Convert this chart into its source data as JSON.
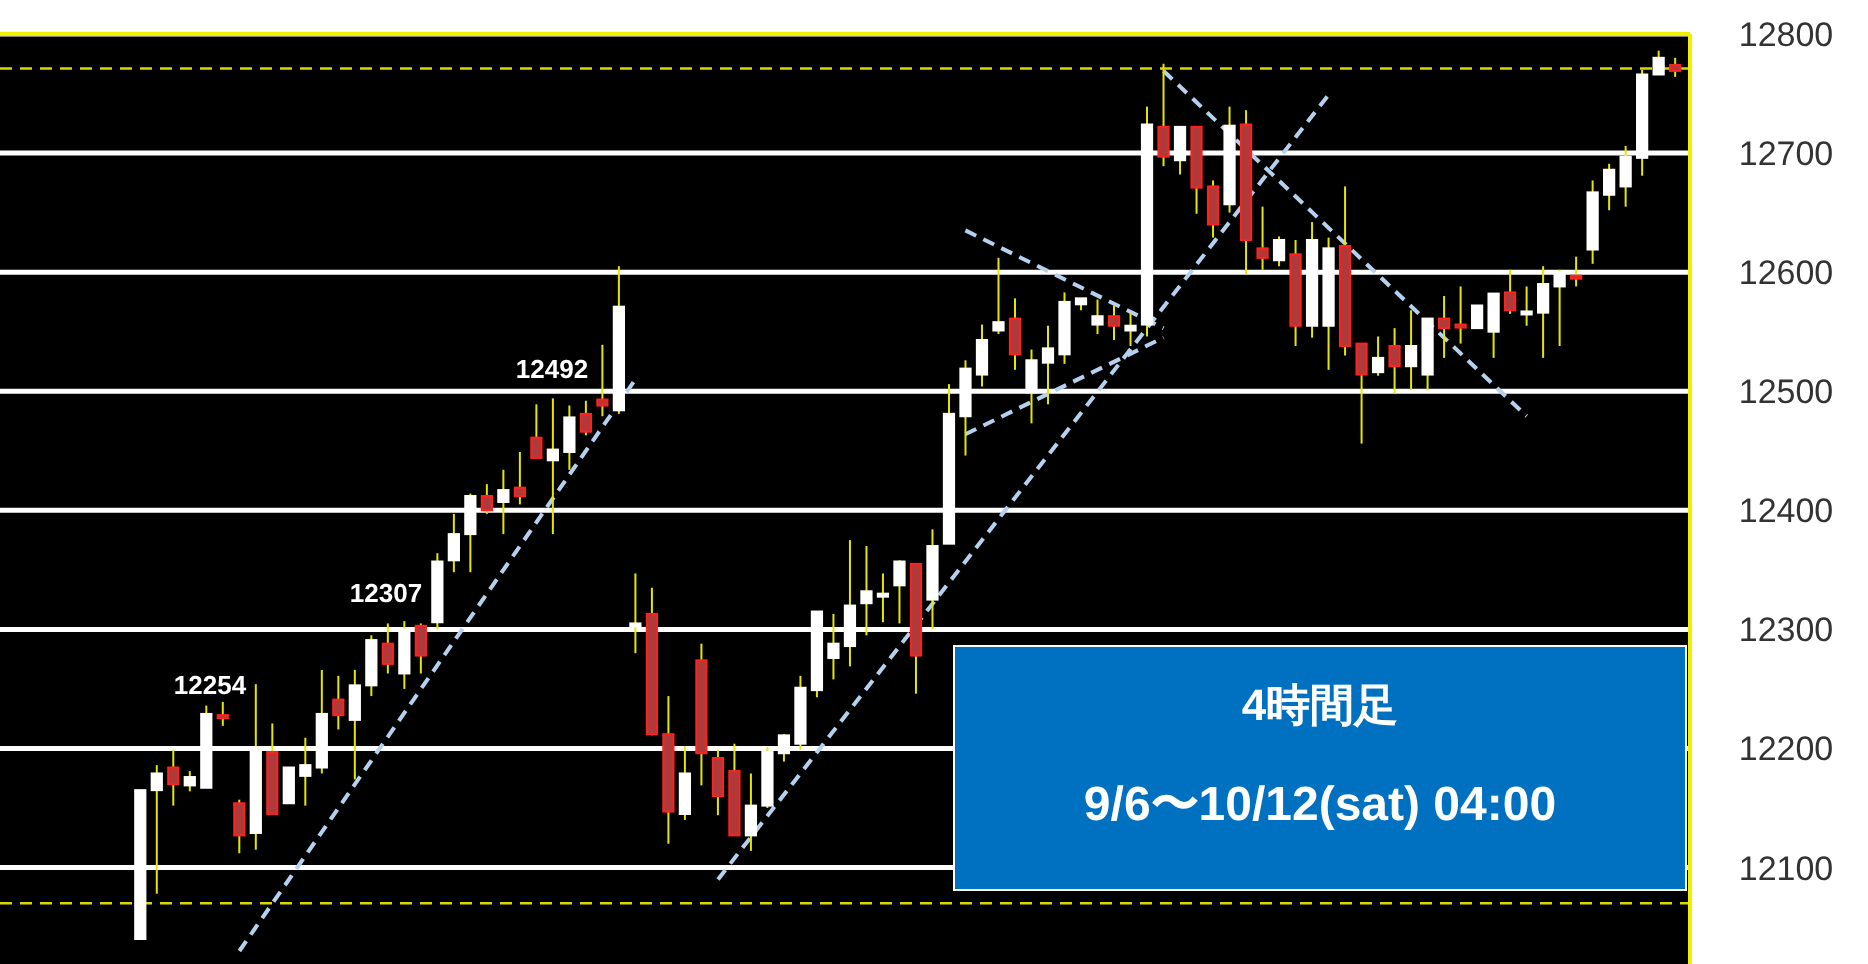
{
  "chart_data": {
    "type": "candlestick",
    "categories": [
      null,
      null,
      null,
      null,
      null,
      null,
      null,
      null,
      null,
      null,
      null,
      null,
      null,
      null,
      null,
      null,
      null,
      null,
      null,
      null,
      null,
      null,
      null,
      null,
      null,
      null,
      null,
      null,
      null,
      null,
      null,
      null,
      null,
      null,
      null,
      null,
      null,
      null,
      null,
      null,
      null,
      null,
      null,
      null,
      null,
      null,
      null,
      null,
      null,
      null,
      null,
      null,
      null,
      null,
      null,
      null,
      null,
      null,
      null,
      null,
      null,
      null,
      null,
      null,
      null,
      null,
      null,
      null,
      null,
      null,
      null,
      null,
      null,
      null,
      null,
      null,
      null,
      null,
      null,
      null,
      null,
      null,
      null,
      null,
      null,
      null,
      null,
      null,
      null,
      null,
      null,
      null,
      null,
      null
    ],
    "ohlc": [
      [
        12040,
        12165,
        12040,
        12165
      ],
      [
        12165,
        12186,
        12078,
        12179
      ],
      [
        12184,
        12199,
        12152,
        12170
      ],
      [
        12169,
        12181,
        12164,
        12176
      ],
      [
        12167,
        12236,
        12167,
        12229
      ],
      [
        12228,
        12239,
        12219,
        12226
      ],
      [
        12154,
        12157,
        12112,
        12127
      ],
      [
        12129,
        12254,
        12115,
        12201
      ],
      [
        12197,
        12221,
        12145,
        12145
      ],
      [
        12154,
        12184,
        12154,
        12184
      ],
      [
        12177,
        12209,
        12152,
        12186
      ],
      [
        12184,
        12266,
        12179,
        12229
      ],
      [
        12241,
        12261,
        12216,
        12228
      ],
      [
        12224,
        12266,
        12174,
        12253
      ],
      [
        12253,
        12295,
        12244,
        12291
      ],
      [
        12288,
        12305,
        12263,
        12271
      ],
      [
        12263,
        12307,
        12250,
        12300
      ],
      [
        12303,
        12305,
        12263,
        12278
      ],
      [
        12306,
        12364,
        12300,
        12357
      ],
      [
        12358,
        12397,
        12348,
        12380
      ],
      [
        12380,
        12414,
        12348,
        12412
      ],
      [
        12412,
        12422,
        12397,
        12400
      ],
      [
        12407,
        12434,
        12380,
        12417
      ],
      [
        12419,
        12449,
        12405,
        12412
      ],
      [
        12461,
        12489,
        12444,
        12444
      ],
      [
        12442,
        12494,
        12380,
        12451
      ],
      [
        12449,
        12488,
        12434,
        12478
      ],
      [
        12481,
        12492,
        12463,
        12466
      ],
      [
        12493,
        12539,
        12479,
        12488
      ],
      [
        12484,
        12605,
        12481,
        12571
      ],
      [
        12303,
        12347,
        12280,
        12305
      ],
      [
        12313,
        12335,
        12211,
        12212
      ],
      [
        12212,
        12244,
        12120,
        12147
      ],
      [
        12145,
        12202,
        12140,
        12179
      ],
      [
        12274,
        12288,
        12169,
        12196
      ],
      [
        12192,
        12199,
        12144,
        12160
      ],
      [
        12181,
        12204,
        12127,
        12127
      ],
      [
        12127,
        12179,
        12114,
        12152
      ],
      [
        12152,
        12201,
        12150,
        12197
      ],
      [
        12196,
        12212,
        12189,
        12211
      ],
      [
        12204,
        12261,
        12199,
        12251
      ],
      [
        12249,
        12315,
        12243,
        12315
      ],
      [
        12276,
        12313,
        12258,
        12288
      ],
      [
        12286,
        12375,
        12269,
        12320
      ],
      [
        12322,
        12370,
        12295,
        12332
      ],
      [
        12328,
        12347,
        12306,
        12330
      ],
      [
        12337,
        12358,
        12305,
        12357
      ],
      [
        12355,
        12355,
        12246,
        12278
      ],
      [
        12325,
        12384,
        12300,
        12370
      ],
      [
        12372,
        12506,
        12372,
        12481
      ],
      [
        12479,
        12526,
        12446,
        12519
      ],
      [
        12514,
        12556,
        12504,
        12543
      ],
      [
        12551,
        12612,
        12548,
        12558
      ],
      [
        12561,
        12578,
        12518,
        12531
      ],
      [
        12499,
        12535,
        12473,
        12526
      ],
      [
        12524,
        12555,
        12489,
        12536
      ],
      [
        12531,
        12583,
        12523,
        12575
      ],
      [
        12573,
        12578,
        12568,
        12578
      ],
      [
        12556,
        12577,
        12548,
        12563
      ],
      [
        12563,
        12572,
        12543,
        12555
      ],
      [
        12551,
        12566,
        12538,
        12555
      ],
      [
        12556,
        12739,
        12546,
        12724
      ],
      [
        12722,
        12775,
        12689,
        12697
      ],
      [
        12694,
        12722,
        12682,
        12722
      ],
      [
        12722,
        12722,
        12649,
        12671
      ],
      [
        12672,
        12677,
        12629,
        12640
      ],
      [
        12657,
        12739,
        12650,
        12723
      ],
      [
        12724,
        12736,
        12598,
        12627
      ],
      [
        12620,
        12655,
        12602,
        12612
      ],
      [
        12610,
        12630,
        12605,
        12627
      ],
      [
        12615,
        12627,
        12538,
        12555
      ],
      [
        12555,
        12642,
        12545,
        12627
      ],
      [
        12555,
        12629,
        12518,
        12620
      ],
      [
        12622,
        12672,
        12530,
        12538
      ],
      [
        12540,
        12540,
        12456,
        12514
      ],
      [
        12516,
        12546,
        12513,
        12528
      ],
      [
        12538,
        12553,
        12498,
        12521
      ],
      [
        12521,
        12568,
        12501,
        12538
      ],
      [
        12514,
        12561,
        12501,
        12561
      ],
      [
        12561,
        12580,
        12528,
        12553
      ],
      [
        12556,
        12588,
        12540,
        12554
      ],
      [
        12553,
        12572,
        12553,
        12572
      ],
      [
        12550,
        12582,
        12528,
        12582
      ],
      [
        12583,
        12602,
        12565,
        12568
      ],
      [
        12565,
        12588,
        12555,
        12567
      ],
      [
        12566,
        12605,
        12528,
        12590
      ],
      [
        12588,
        12602,
        12538,
        12600
      ],
      [
        12597,
        12613,
        12588,
        12595
      ],
      [
        12619,
        12677,
        12607,
        12667
      ],
      [
        12665,
        12691,
        12652,
        12686
      ],
      [
        12672,
        12706,
        12655,
        12697
      ],
      [
        12696,
        12770,
        12681,
        12766
      ],
      [
        12766,
        12786,
        12766,
        12780
      ],
      [
        12774,
        12780,
        12764,
        12769
      ]
    ],
    "colors": [
      "#ffffff",
      "#ffffff",
      "#b03a3a",
      "#ffffff",
      "#ffffff",
      "#b03a3a",
      "#b03a3a",
      "#ffffff",
      "#b03a3a",
      "#ffffff",
      "#ffffff",
      "#ffffff",
      "#b03a3a",
      "#ffffff",
      "#ffffff",
      "#b03a3a",
      "#ffffff",
      "#b03a3a",
      "#ffffff",
      "#ffffff",
      "#ffffff",
      "#b03a3a",
      "#ffffff",
      "#b03a3a",
      "#b03a3a",
      "#ffffff",
      "#ffffff",
      "#b03a3a",
      "#b03a3a",
      "#ffffff",
      "#ffffff",
      "#b03a3a",
      "#b03a3a",
      "#ffffff",
      "#b03a3a",
      "#b03a3a",
      "#b03a3a",
      "#ffffff",
      "#ffffff",
      "#ffffff",
      "#ffffff",
      "#ffffff",
      "#ffffff",
      "#ffffff",
      "#ffffff",
      "#ffffff",
      "#ffffff",
      "#b03a3a",
      "#ffffff",
      "#ffffff",
      "#ffffff",
      "#ffffff",
      "#ffffff",
      "#b03a3a",
      "#ffffff",
      "#ffffff",
      "#ffffff",
      "#ffffff",
      "#ffffff",
      "#b03a3a",
      "#ffffff",
      "#ffffff",
      "#b03a3a",
      "#ffffff",
      "#b03a3a",
      "#b03a3a",
      "#ffffff",
      "#b03a3a",
      "#b03a3a",
      "#ffffff",
      "#b03a3a",
      "#ffffff",
      "#ffffff",
      "#b03a3a",
      "#b03a3a",
      "#ffffff",
      "#b03a3a",
      "#ffffff",
      "#ffffff",
      "#b03a3a",
      "#b03a3a",
      "#ffffff",
      "#ffffff",
      "#b03a3a",
      "#ffffff",
      "#ffffff",
      "#ffffff",
      "#b03a3a",
      "#ffffff",
      "#ffffff",
      "#ffffff",
      "#ffffff",
      "#ffffff",
      "#b03a3a"
    ],
    "series": [
      {
        "type": "line",
        "values": [
          null,
          null,
          null,
          null,
          null,
          null,
          12030,
          null,
          null,
          null,
          null,
          null,
          null,
          null,
          null,
          null,
          null,
          null,
          null,
          null,
          null,
          null,
          null,
          null,
          null,
          null,
          null,
          null,
          null,
          null,
          12510,
          null,
          null,
          null,
          null,
          null,
          null,
          null,
          null,
          null,
          null,
          null,
          null,
          null,
          null,
          null,
          null,
          null,
          null,
          null,
          null,
          null,
          null,
          null,
          null,
          null,
          null,
          null,
          null,
          null,
          null,
          null,
          null,
          null,
          null,
          null,
          null,
          null,
          null,
          null,
          null,
          null,
          null,
          null,
          null,
          null,
          null,
          null,
          null,
          null,
          null,
          null,
          null,
          null,
          null,
          null,
          null,
          null,
          null,
          null,
          null,
          null,
          null,
          null
        ],
        "color": "#b4d2f0",
        "line_style": "dashed"
      },
      {
        "type": "line",
        "values": [
          null,
          null,
          null,
          null,
          null,
          null,
          null,
          null,
          null,
          null,
          null,
          null,
          null,
          null,
          null,
          null,
          null,
          null,
          null,
          null,
          null,
          null,
          null,
          null,
          null,
          null,
          null,
          null,
          null,
          null,
          null,
          null,
          null,
          null,
          null,
          12090,
          null,
          null,
          null,
          null,
          null,
          null,
          null,
          null,
          null,
          null,
          null,
          null,
          null,
          null,
          null,
          null,
          null,
          null,
          null,
          null,
          null,
          null,
          null,
          null,
          null,
          null,
          null,
          null,
          null,
          null,
          null,
          null,
          null,
          null,
          null,
          null,
          12749,
          null,
          null,
          null,
          null,
          null,
          null,
          null,
          null,
          null,
          null,
          null,
          null,
          null,
          null,
          null,
          null,
          null,
          null,
          null,
          null,
          null
        ],
        "color": "#b4d2f0",
        "line_style": "dashed"
      },
      {
        "type": "line",
        "values": [
          null,
          null,
          null,
          null,
          null,
          null,
          null,
          null,
          null,
          null,
          null,
          null,
          null,
          null,
          null,
          null,
          null,
          null,
          null,
          null,
          null,
          null,
          null,
          null,
          null,
          null,
          null,
          null,
          null,
          null,
          null,
          null,
          null,
          null,
          null,
          null,
          null,
          null,
          null,
          null,
          null,
          null,
          null,
          null,
          null,
          null,
          null,
          null,
          null,
          null,
          12635,
          null,
          null,
          null,
          null,
          null,
          null,
          null,
          null,
          null,
          null,
          null,
          12553,
          null,
          null,
          null,
          null,
          null,
          null,
          null,
          null,
          null,
          null,
          null,
          null,
          null,
          null,
          null,
          null,
          null,
          null,
          null,
          null,
          null,
          null,
          null,
          null,
          null,
          null,
          null,
          null,
          null,
          null,
          null
        ],
        "color": "#b4d2f0",
        "line_style": "dashed"
      },
      {
        "type": "line",
        "values": [
          null,
          null,
          null,
          null,
          null,
          null,
          null,
          null,
          null,
          null,
          null,
          null,
          null,
          null,
          null,
          null,
          null,
          null,
          null,
          null,
          null,
          null,
          null,
          null,
          null,
          null,
          null,
          null,
          null,
          null,
          null,
          null,
          null,
          null,
          null,
          null,
          null,
          null,
          null,
          null,
          null,
          null,
          null,
          null,
          null,
          null,
          null,
          null,
          null,
          null,
          12464,
          null,
          null,
          null,
          null,
          null,
          null,
          null,
          null,
          null,
          null,
          null,
          12545,
          null,
          null,
          null,
          null,
          null,
          null,
          null,
          null,
          null,
          null,
          null,
          null,
          null,
          null,
          null,
          null,
          null,
          null,
          null,
          null,
          null,
          null,
          null,
          null,
          null,
          null,
          null,
          null,
          null,
          null,
          null
        ],
        "color": "#b4d2f0",
        "line_style": "dashed"
      },
      {
        "type": "line",
        "values": [
          null,
          null,
          null,
          null,
          null,
          null,
          null,
          null,
          null,
          null,
          null,
          null,
          null,
          null,
          null,
          null,
          null,
          null,
          null,
          null,
          null,
          null,
          null,
          null,
          null,
          null,
          null,
          null,
          null,
          null,
          null,
          null,
          null,
          null,
          null,
          null,
          null,
          null,
          null,
          null,
          null,
          null,
          null,
          null,
          null,
          null,
          null,
          null,
          null,
          null,
          null,
          null,
          null,
          null,
          null,
          null,
          null,
          null,
          null,
          null,
          null,
          null,
          12769,
          null,
          null,
          null,
          null,
          null,
          null,
          null,
          null,
          null,
          null,
          null,
          null,
          null,
          null,
          null,
          null,
          null,
          null,
          null,
          null,
          null,
          12479,
          null,
          null,
          null,
          null,
          null,
          null,
          null,
          null,
          null
        ],
        "color": "#b4d2f0",
        "line_style": "dashed"
      }
    ],
    "ylim": [
      12019,
      12800
    ],
    "yticks": [
      12100,
      12200,
      12300,
      12400,
      12500,
      12600,
      12700,
      12800
    ],
    "grid": "y",
    "tick_labels": "y",
    "ref_lines": [
      {
        "axis": "y",
        "value": 12771,
        "color": "#d8d800",
        "line_style": "dashed"
      },
      {
        "axis": "y",
        "value": 12070,
        "color": "#d8d800",
        "line_style": "dashed"
      }
    ],
    "annotations": [
      "12254",
      "12307",
      "12492",
      "4時間足",
      "9/6〜10/12(sat) 04:00"
    ]
  }
}
